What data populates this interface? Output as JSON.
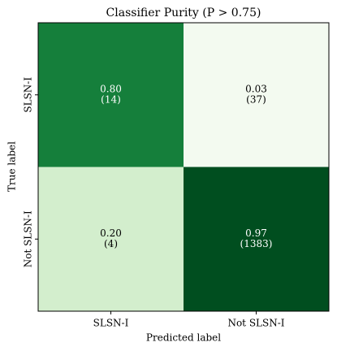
{
  "chart_data": {
    "type": "heatmap",
    "title": "Classifier Purity (P > 0.75)",
    "xlabel": "Predicted label",
    "ylabel": "True label",
    "x_categories": [
      "SLSN-I",
      "Not SLSN-I"
    ],
    "y_categories": [
      "SLSN-I",
      "Not SLSN-I"
    ],
    "values": [
      [
        0.8,
        0.03
      ],
      [
        0.2,
        0.97
      ]
    ],
    "value_labels": [
      [
        "0.80",
        "0.03"
      ],
      [
        "0.20",
        "0.97"
      ]
    ],
    "counts": [
      [
        14,
        37
      ],
      [
        4,
        1383
      ]
    ],
    "count_labels": [
      [
        "(14)",
        "(37)"
      ],
      [
        "(4)",
        "(1383)"
      ]
    ],
    "clim": [
      0,
      1
    ],
    "colormap": [
      "#f7fcf5",
      "#e5f5e0",
      "#c7e9c0",
      "#a1d99b",
      "#74c476",
      "#41ab5d",
      "#238b45",
      "#006d2c",
      "#00441b"
    ]
  }
}
